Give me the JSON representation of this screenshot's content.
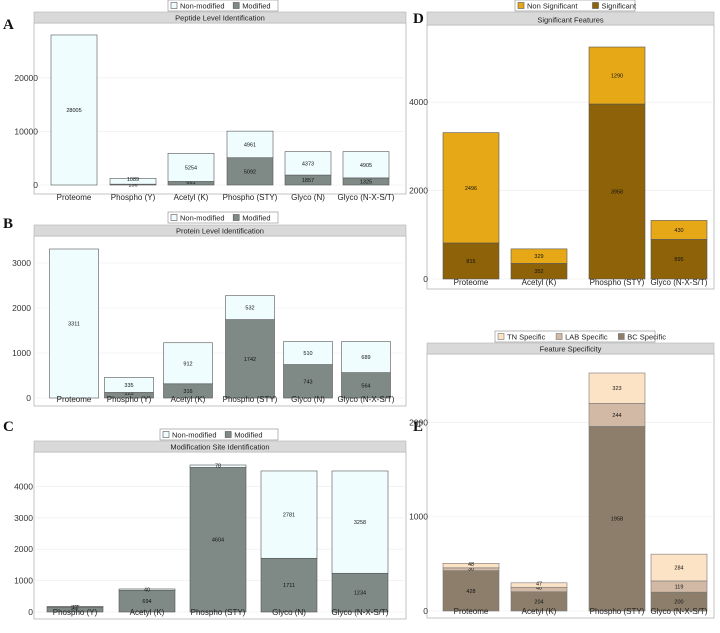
{
  "colors": {
    "non_modified": "#effdff",
    "modified": "#7f8a87",
    "non_significant": "#e6a817",
    "significant": "#8d6208",
    "tn_specific": "#fde3c6",
    "lab_specific": "#d2b9a6",
    "bc_specific": "#8c7e6b"
  },
  "chart_data": [
    {
      "id": "A",
      "panel_label": "A",
      "type": "bar",
      "stacked": true,
      "title": "Peptide Level Identification",
      "legend": [
        "Non-modified",
        "Modified"
      ],
      "categories": [
        "Proteome",
        "Phospho (Y)",
        "Acetyl (K)",
        "Phospho (STY)",
        "Glyco (N)",
        "Glyco (N-X-S/T)"
      ],
      "series": [
        {
          "name": "Modified",
          "values": [
            0,
            156,
            661,
            5092,
            1857,
            1325
          ],
          "labels": [
            "",
            "156",
            "661",
            "5092",
            "1857",
            "1325"
          ]
        },
        {
          "name": "Non-modified",
          "values": [
            28005,
            1089,
            5254,
            4961,
            4373,
            4905
          ],
          "labels": [
            "28005",
            "1089",
            "5254",
            "4961",
            "4373",
            "4905"
          ]
        }
      ],
      "yticks": [
        0,
        10000,
        20000
      ],
      "ylim": [
        0,
        29000
      ],
      "xlabel": "",
      "ylabel": ""
    },
    {
      "id": "B",
      "panel_label": "B",
      "type": "bar",
      "stacked": true,
      "title": "Protein Level Identification",
      "legend": [
        "Non-modified",
        "Modified"
      ],
      "categories": [
        "Proteome",
        "Phospho (Y)",
        "Acetyl (K)",
        "Phospho (STY)",
        "Glyco (N)",
        "Glyco (N-X-S/T)"
      ],
      "series": [
        {
          "name": "Modified",
          "values": [
            0,
            123,
            316,
            1742,
            743,
            564
          ],
          "labels": [
            "",
            "123",
            "316",
            "1742",
            "743",
            "564"
          ]
        },
        {
          "name": "Non-modified",
          "values": [
            3311,
            335,
            912,
            532,
            510,
            689
          ],
          "labels": [
            "3311",
            "335",
            "912",
            "532",
            "510",
            "689"
          ]
        }
      ],
      "yticks": [
        0,
        1000,
        2000,
        3000
      ],
      "ylim": [
        0,
        3400
      ],
      "xlabel": "",
      "ylabel": ""
    },
    {
      "id": "C",
      "panel_label": "C",
      "type": "bar",
      "stacked": true,
      "title": "Modification Site Identification",
      "legend": [
        "Non-modified",
        "Modified"
      ],
      "categories": [
        "Phospho (Y)",
        "Acetyl (K)",
        "Phospho (STY)",
        "Glyco (N)",
        "Glyco (N-X-S/T)"
      ],
      "series": [
        {
          "name": "Modified",
          "values": [
            157,
            694,
            4604,
            1711,
            1234
          ],
          "labels": [
            "157",
            "694",
            "4604",
            "1711",
            "1234"
          ]
        },
        {
          "name": "Non-modified",
          "values": [
            17,
            40,
            78,
            2781,
            3258
          ],
          "labels": [
            "17",
            "40",
            "78",
            "2781",
            "3258"
          ]
        }
      ],
      "yticks": [
        0,
        1000,
        2000,
        3000,
        4000
      ],
      "ylim": [
        0,
        4750
      ],
      "xlabel": "",
      "ylabel": ""
    },
    {
      "id": "D",
      "panel_label": "D",
      "type": "bar",
      "stacked": true,
      "title": "Significant Features",
      "legend": [
        "Non Significant",
        "Significant"
      ],
      "categories": [
        "Proteome",
        "Acetyl (K)",
        "Phospho (STY)",
        "Glyco (N-X-S/T)"
      ],
      "series": [
        {
          "name": "Significant",
          "values": [
            815,
            352,
            3958,
            895
          ],
          "labels": [
            "815",
            "352",
            "3958",
            "895"
          ]
        },
        {
          "name": "Non Significant",
          "values": [
            2496,
            329,
            1290,
            430
          ],
          "labels": [
            "2496",
            "329",
            "1290",
            "430"
          ]
        }
      ],
      "yticks": [
        0,
        2000,
        4000
      ],
      "ylim": [
        0,
        5500
      ],
      "xlabel": "",
      "ylabel": ""
    },
    {
      "id": "E",
      "panel_label": "E",
      "type": "bar",
      "stacked": true,
      "title": "Feature Specificity",
      "legend": [
        "TN Specific",
        "LAB Specific",
        "BC Specific"
      ],
      "categories": [
        "Proteome",
        "Acetyl (K)",
        "Phospho (STY)",
        "Glyco (N-X-S/T)"
      ],
      "series": [
        {
          "name": "BC Specific",
          "values": [
            428,
            204,
            1958,
            200
          ],
          "labels": [
            "428",
            "204",
            "1958",
            "200"
          ]
        },
        {
          "name": "LAB Specific",
          "values": [
            30,
            48,
            244,
            119
          ],
          "labels": [
            "30",
            "48",
            "244",
            "119"
          ]
        },
        {
          "name": "TN Specific",
          "values": [
            48,
            47,
            323,
            284
          ],
          "labels": [
            "48",
            "47",
            "323",
            "284"
          ]
        }
      ],
      "yticks": [
        0,
        1000,
        2000
      ],
      "ylim": [
        0,
        2620
      ],
      "xlabel": "",
      "ylabel": ""
    }
  ]
}
